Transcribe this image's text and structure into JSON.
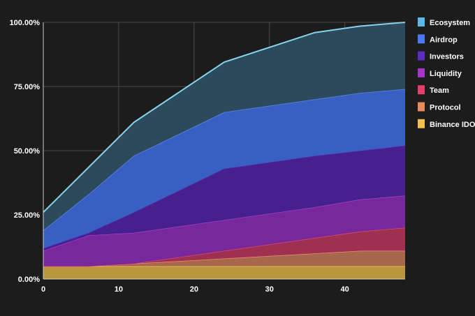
{
  "chart_data": {
    "type": "area",
    "stacked": true,
    "x": [
      0,
      6,
      12,
      24,
      36,
      42,
      48
    ],
    "xlim": [
      0,
      48
    ],
    "ylim": [
      0,
      100
    ],
    "xticks": [
      "0",
      "10",
      "20",
      "30",
      "40"
    ],
    "xtick_values": [
      0,
      10,
      20,
      30,
      40
    ],
    "yticks": [
      "0.00%",
      "25.00%",
      "50.00%",
      "75.00%",
      "100.00%"
    ],
    "ytick_values": [
      0,
      25,
      50,
      75,
      100
    ],
    "grid": true,
    "legend_position": "right",
    "series": [
      {
        "name": "Ecosystem",
        "values": [
          7,
          10.5,
          13,
          19.5,
          26,
          26,
          26
        ],
        "color": "#5bb8e8",
        "fill": "#2c4a5c",
        "line": "#86d4ec"
      },
      {
        "name": "Airdrop",
        "values": [
          7,
          15,
          22,
          22,
          22,
          22.5,
          22
        ],
        "color": "#4a7af0",
        "fill": "#3760c2",
        "line": "#5a88ee"
      },
      {
        "name": "Investors",
        "values": [
          1,
          1,
          8,
          20,
          20,
          19,
          19.5
        ],
        "color": "#5a2ec0",
        "fill": "#45208e",
        "line": "#5a30b0"
      },
      {
        "name": "Liquidity",
        "values": [
          6,
          12,
          12,
          12,
          12,
          12.5,
          12.5
        ],
        "color": "#a636c8",
        "fill": "#77289a",
        "line": "#a640cc"
      },
      {
        "name": "Team",
        "values": [
          0,
          0,
          0,
          3,
          6,
          7.5,
          9
        ],
        "color": "#e0406a",
        "fill": "#9e3052",
        "line": "#e04a6a"
      },
      {
        "name": "Protocol",
        "values": [
          0,
          0,
          1,
          3,
          5,
          6,
          6
        ],
        "color": "#e88a5a",
        "fill": "#a8674a",
        "line": "#f09070"
      },
      {
        "name": "Binance IDO",
        "values": [
          5,
          5,
          5,
          5,
          5,
          5,
          5
        ],
        "color": "#f0c050",
        "fill": "#b9963e",
        "line": "#f0c860"
      }
    ]
  }
}
